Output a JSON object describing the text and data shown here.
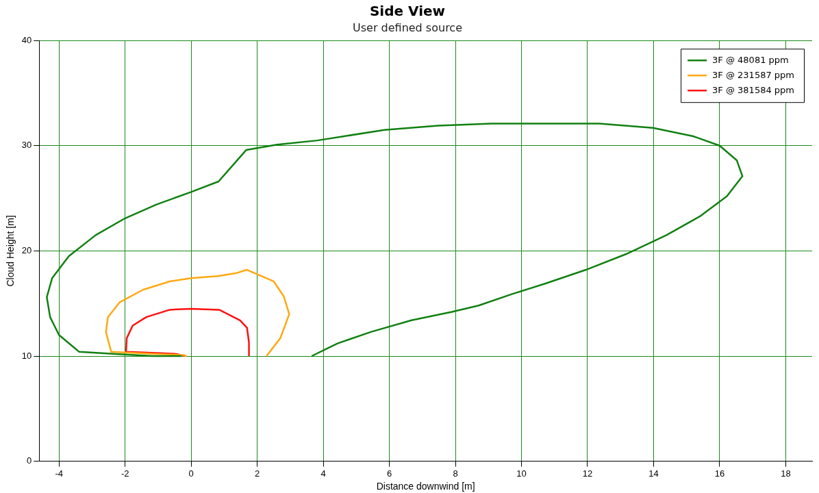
{
  "chart_data": {
    "type": "line",
    "title": "Side View",
    "subtitle": "User defined source",
    "xlabel": "Distance downwind [m]",
    "ylabel": "Cloud Height [m]",
    "xlim": [
      -4.6,
      18.8
    ],
    "xticks": [
      -4,
      -2,
      0,
      2,
      4,
      6,
      8,
      10,
      12,
      14,
      16,
      18
    ],
    "ylim": [
      0,
      40
    ],
    "yticks": [
      0,
      10,
      20,
      30,
      40
    ],
    "grid": true,
    "legend": "top right",
    "marker": "none",
    "line_style": "solid",
    "series": [
      {
        "name": "3F @ 48081 ppm",
        "color": "#118011",
        "x": [
          3.65,
          4.43,
          5.45,
          6.67,
          7.89,
          8.7,
          9.72,
          10.73,
          11.95,
          13.17,
          14.39,
          15.41,
          16.22,
          16.69,
          16.52,
          16.0,
          15.2,
          13.98,
          12.36,
          10.73,
          9.1,
          7.48,
          5.85,
          4.63,
          3.82,
          2.6,
          1.67,
          0.83,
          0,
          -1.06,
          -2,
          -2.89,
          -3.7,
          -4.21,
          -4.37,
          -4.27,
          -4.0,
          -3.39,
          -2.28,
          -1.18,
          -0.3
        ],
        "values": [
          10,
          11.2,
          12.3,
          13.4,
          14.2,
          14.8,
          15.9,
          16.9,
          18.2,
          19.7,
          21.5,
          23.3,
          25.2,
          27.1,
          28.6,
          30.0,
          30.9,
          31.7,
          32.1,
          32.1,
          32.1,
          31.9,
          31.5,
          30.9,
          30.5,
          30.1,
          29.6,
          26.6,
          25.6,
          24.4,
          23.1,
          21.5,
          19.5,
          17.4,
          15.6,
          13.7,
          12.0,
          10.4,
          10.2,
          10.0,
          10.0
        ]
      },
      {
        "name": "3F @ 231587 ppm",
        "color": "#ffa812",
        "x": [
          2.28,
          2.7,
          2.97,
          2.8,
          2.5,
          1.69,
          1.38,
          0.81,
          0,
          -0.65,
          -1.46,
          -2.17,
          -2.52,
          -2.58,
          -2.42,
          -1.06,
          -0.24,
          -0.14
        ],
        "values": [
          10,
          11.7,
          14.0,
          15.7,
          17.1,
          18.2,
          17.9,
          17.6,
          17.4,
          17.1,
          16.3,
          15.1,
          13.7,
          12.3,
          10.4,
          10.2,
          10.1,
          10.0
        ]
      },
      {
        "name": "3F @ 381584 ppm",
        "color": "#ff1010",
        "x": [
          1.75,
          1.75,
          1.69,
          1.48,
          0.85,
          0,
          -0.65,
          -1.36,
          -1.77,
          -1.95,
          -1.97,
          -1.06,
          -0.45,
          -0.18
        ],
        "values": [
          10,
          11.3,
          12.7,
          13.4,
          14.4,
          14.5,
          14.4,
          13.7,
          12.9,
          11.7,
          10.4,
          10.3,
          10.2,
          10.0
        ]
      }
    ]
  }
}
